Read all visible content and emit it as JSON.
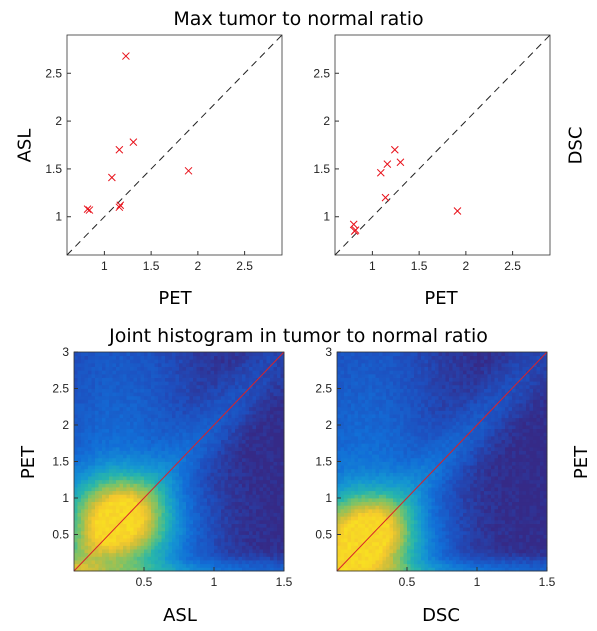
{
  "titles": {
    "top": "Max tumor to normal ratio",
    "bottom": "Joint histogram in tumor to normal ratio"
  },
  "chart_data": [
    {
      "type": "scatter",
      "xlabel": "PET",
      "ylabel": "ASL",
      "xlim": [
        0.6,
        2.9
      ],
      "ylim": [
        0.6,
        2.9
      ],
      "xticks": [
        "1",
        "1.5",
        "2",
        "2.5"
      ],
      "yticks": [
        "1",
        "1.5",
        "2",
        "2.5"
      ],
      "marker": "x",
      "marker_color": "#e8111a",
      "diagonal": "dashed",
      "points": [
        {
          "x": 0.82,
          "y": 1.08
        },
        {
          "x": 0.84,
          "y": 1.07
        },
        {
          "x": 1.08,
          "y": 1.41
        },
        {
          "x": 1.16,
          "y": 1.7
        },
        {
          "x": 1.16,
          "y": 1.1
        },
        {
          "x": 1.17,
          "y": 1.12
        },
        {
          "x": 1.23,
          "y": 2.68
        },
        {
          "x": 1.31,
          "y": 1.78
        },
        {
          "x": 1.9,
          "y": 1.48
        }
      ]
    },
    {
      "type": "scatter",
      "xlabel": "PET",
      "ylabel": "DSC",
      "xlim": [
        0.6,
        2.9
      ],
      "ylim": [
        0.6,
        2.9
      ],
      "xticks": [
        "1",
        "1.5",
        "2",
        "2.5"
      ],
      "yticks": [
        "1",
        "1.5",
        "2",
        "2.5"
      ],
      "marker": "x",
      "marker_color": "#e8111a",
      "diagonal": "dashed",
      "points": [
        {
          "x": 0.8,
          "y": 0.92
        },
        {
          "x": 0.81,
          "y": 0.85
        },
        {
          "x": 0.82,
          "y": 0.86
        },
        {
          "x": 1.09,
          "y": 1.46
        },
        {
          "x": 1.14,
          "y": 1.2
        },
        {
          "x": 1.16,
          "y": 1.55
        },
        {
          "x": 1.24,
          "y": 1.7
        },
        {
          "x": 1.3,
          "y": 1.57
        },
        {
          "x": 1.91,
          "y": 1.06
        }
      ]
    },
    {
      "type": "heatmap",
      "xlabel": "ASL",
      "ylabel": "PET",
      "xlim": [
        0,
        1.5
      ],
      "ylim": [
        0,
        3
      ],
      "xticks": [
        "0.5",
        "1",
        "1.5"
      ],
      "yticks": [
        "0.5",
        "1",
        "1.5",
        "2",
        "2.5",
        "3"
      ],
      "diagonal": "solid",
      "diagonal_color": "#d8232a",
      "colormap": "parula",
      "peak": {
        "x": 0.32,
        "y": 0.72
      }
    },
    {
      "type": "heatmap",
      "xlabel": "DSC",
      "ylabel": "PET",
      "xlim": [
        0,
        1.5
      ],
      "ylim": [
        0,
        3
      ],
      "xticks": [
        "0.5",
        "1",
        "1.5"
      ],
      "yticks": [
        "0.5",
        "1",
        "1.5",
        "2",
        "2.5",
        "3"
      ],
      "diagonal": "solid",
      "diagonal_color": "#d8232a",
      "colormap": "parula",
      "peak": {
        "x": 0.2,
        "y": 0.48
      }
    }
  ]
}
